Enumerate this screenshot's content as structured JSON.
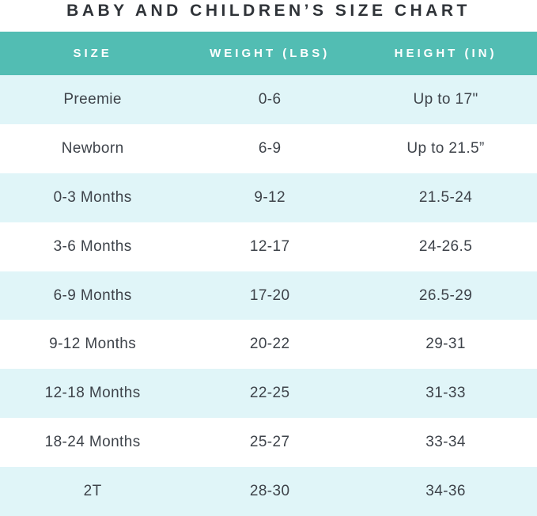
{
  "title": "BABY AND CHILDREN’S SIZE CHART",
  "colors": {
    "header_bg": "#52bdb3",
    "header_text": "#ffffff",
    "row_alt_bg": "#e0f5f8",
    "row_bg": "#ffffff",
    "title_text": "#2f3338",
    "body_text": "#3e434a"
  },
  "chart_data": {
    "type": "table",
    "title": "BABY AND CHILDREN’S SIZE CHART",
    "columns": [
      "SIZE",
      "WEIGHT (LBS)",
      "HEIGHT (IN)"
    ],
    "rows": [
      [
        "Preemie",
        "0-6",
        "Up to 17\""
      ],
      [
        "Newborn",
        "6-9",
        "Up to 21.5”"
      ],
      [
        "0-3 Months",
        "9-12",
        "21.5-24"
      ],
      [
        "3-6 Months",
        "12-17",
        "24-26.5"
      ],
      [
        "6-9 Months",
        "17-20",
        "26.5-29"
      ],
      [
        "9-12 Months",
        "20-22",
        "29-31"
      ],
      [
        "12-18 Months",
        "22-25",
        "31-33"
      ],
      [
        "18-24 Months",
        "25-27",
        "33-34"
      ],
      [
        "2T",
        "28-30",
        "34-36"
      ]
    ],
    "layout": {
      "legend": "none",
      "grid": "off",
      "row_striping": "odd rows light blue, even rows white",
      "header_position": "top"
    }
  }
}
